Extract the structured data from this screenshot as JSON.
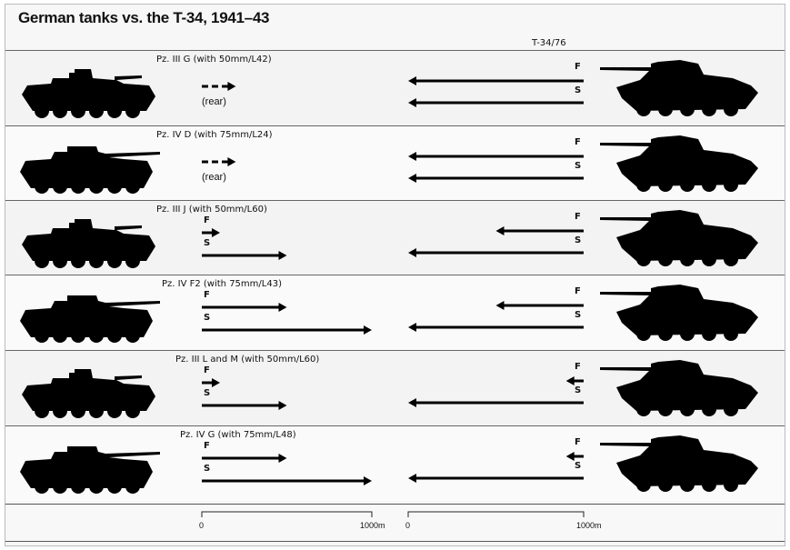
{
  "title": "German tanks vs. the T-34, 1941–43",
  "t34": {
    "label": "T-34/76"
  },
  "labels": {
    "front": "F",
    "side": "S",
    "rear": "(rear)"
  },
  "rows": [
    {
      "tank": "Pz. III G (with 50mm/L42)",
      "german": {
        "rear_m": 200
      },
      "t34": {
        "front_m": 1000,
        "side_m": 1000
      }
    },
    {
      "tank": "Pz. IV D (with 75mm/L24)",
      "german": {
        "rear_m": 200
      },
      "t34": {
        "front_m": 1000,
        "side_m": 1000
      }
    },
    {
      "tank": "Pz. III J (with 50mm/L60)",
      "german": {
        "front_m": 100,
        "side_m": 500
      },
      "t34": {
        "front_m": 500,
        "side_m": 1000
      }
    },
    {
      "tank": "Pz. IV F2 (with 75mm/L43)",
      "german": {
        "front_m": 500,
        "side_m": 1000
      },
      "t34": {
        "front_m": 500,
        "side_m": 1000
      }
    },
    {
      "tank": "Pz. III L and M (with 50mm/L60)",
      "german": {
        "front_m": 100,
        "side_m": 500
      },
      "t34": {
        "front_m": 100,
        "side_m": 1000
      }
    },
    {
      "tank": "Pz. IV G (with 75mm/L48)",
      "german": {
        "front_m": 500,
        "side_m": 1000
      },
      "t34": {
        "front_m": 100,
        "side_m": 1000
      }
    }
  ],
  "scale": {
    "zero": "0",
    "max": "1000m"
  }
}
